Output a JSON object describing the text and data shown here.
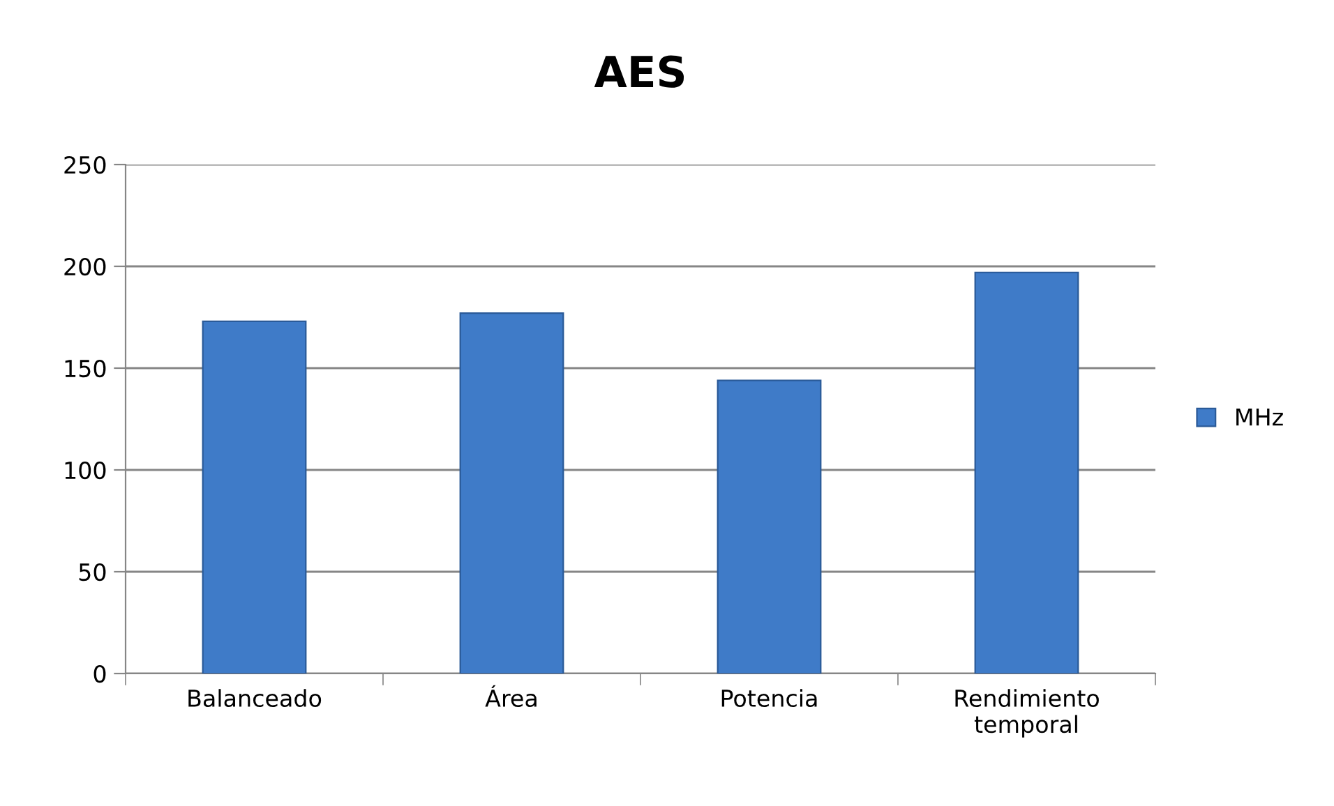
{
  "chart_data": {
    "type": "bar",
    "title": "AES",
    "categories": [
      "Balanceado",
      "Área",
      "Potencia",
      "Rendimiento\ntemporal"
    ],
    "series": [
      {
        "name": "MHz",
        "color": "#3f7bc8",
        "values": [
          173,
          177,
          144,
          197
        ]
      }
    ],
    "ylim": [
      0,
      250
    ],
    "yticks": [
      0,
      50,
      100,
      150,
      200,
      250
    ],
    "grid": "y",
    "legend": "right"
  }
}
